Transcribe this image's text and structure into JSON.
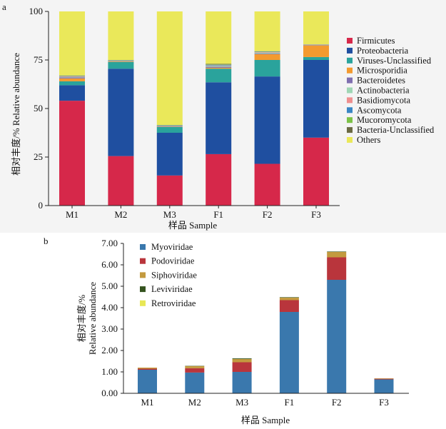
{
  "chart_data": [
    {
      "panel_label": "a",
      "type": "bar",
      "stacked": true,
      "categories": [
        "M1",
        "M2",
        "M3",
        "F1",
        "F2",
        "F3"
      ],
      "xlabel": "样品 Sample",
      "ylabel": "相对丰度/% Relative abundance",
      "ylim": [
        0,
        100
      ],
      "yticks": [
        "0",
        "25",
        "50",
        "75",
        "100"
      ],
      "legend_position": "right",
      "grid": false,
      "series": [
        {
          "name": "Firmicutes",
          "color": "#d6284a",
          "values": [
            54,
            25.5,
            15.5,
            26.5,
            21.5,
            35
          ]
        },
        {
          "name": "Proteobacteria",
          "color": "#1f4fa0",
          "values": [
            8,
            45,
            22,
            37,
            45,
            40
          ]
        },
        {
          "name": "Viruses-Unclassified",
          "color": "#2aa39c",
          "values": [
            2,
            3.5,
            3,
            7,
            8.5,
            1.5
          ]
        },
        {
          "name": "Microsporidia",
          "color": "#f39a2f",
          "values": [
            1.5,
            0.3,
            0.2,
            0.5,
            3,
            6
          ]
        },
        {
          "name": "Bacteroidetes",
          "color": "#7f6fb0",
          "values": [
            0.5,
            0.2,
            0.3,
            0.5,
            0.3,
            0.2
          ]
        },
        {
          "name": "Actinobacteria",
          "color": "#9fd6b4",
          "values": [
            0.3,
            0.2,
            0.2,
            0.5,
            0.5,
            0.1
          ]
        },
        {
          "name": "Basidiomycota",
          "color": "#ee8f8f",
          "values": [
            0.3,
            0.1,
            0.1,
            0.2,
            0.3,
            0.1
          ]
        },
        {
          "name": "Ascomycota",
          "color": "#3a86c4",
          "values": [
            0.2,
            0.1,
            0.1,
            0.3,
            0.2,
            0.1
          ]
        },
        {
          "name": "Mucoromycota",
          "color": "#7cc247",
          "values": [
            0.1,
            0.1,
            0.1,
            0.2,
            0.1,
            0.0
          ]
        },
        {
          "name": "Bacteria-Unclassified",
          "color": "#6b6a43",
          "values": [
            0.1,
            0.0,
            0.0,
            0.3,
            0.1,
            0.0
          ]
        },
        {
          "name": "Others",
          "color": "#eae85a",
          "values": [
            33,
            25,
            58.5,
            27,
            20.5,
            17
          ]
        }
      ]
    },
    {
      "panel_label": "b",
      "type": "bar",
      "stacked": true,
      "categories": [
        "M1",
        "M2",
        "M3",
        "F1",
        "F2",
        "F3"
      ],
      "xlabel": "样品 Sample",
      "ylabel": "相对丰度/% Relative abundance",
      "ylim": [
        0,
        7
      ],
      "yticks": [
        "0.00",
        "1.00",
        "2.00",
        "3.00",
        "4.00",
        "5.00",
        "6.00",
        "7.00"
      ],
      "legend_position": "top-left",
      "grid": false,
      "series": [
        {
          "name": "Myoviridae",
          "color": "#3a78ad",
          "values": [
            1.1,
            0.97,
            1.0,
            3.8,
            5.3,
            0.65
          ]
        },
        {
          "name": "Podoviridae",
          "color": "#b9353c",
          "values": [
            0.05,
            0.2,
            0.45,
            0.55,
            1.05,
            0.03
          ]
        },
        {
          "name": "Siphoviridae",
          "color": "#c39a3f",
          "values": [
            0.05,
            0.1,
            0.15,
            0.12,
            0.25,
            0.02
          ]
        },
        {
          "name": "Leviviridae",
          "color": "#35531f",
          "values": [
            0.0,
            0.01,
            0.03,
            0.02,
            0.02,
            0.0
          ]
        },
        {
          "name": "Retroviridae",
          "color": "#e8e755",
          "values": [
            0.0,
            0.0,
            0.0,
            0.0,
            0.0,
            0.0
          ]
        }
      ]
    }
  ]
}
